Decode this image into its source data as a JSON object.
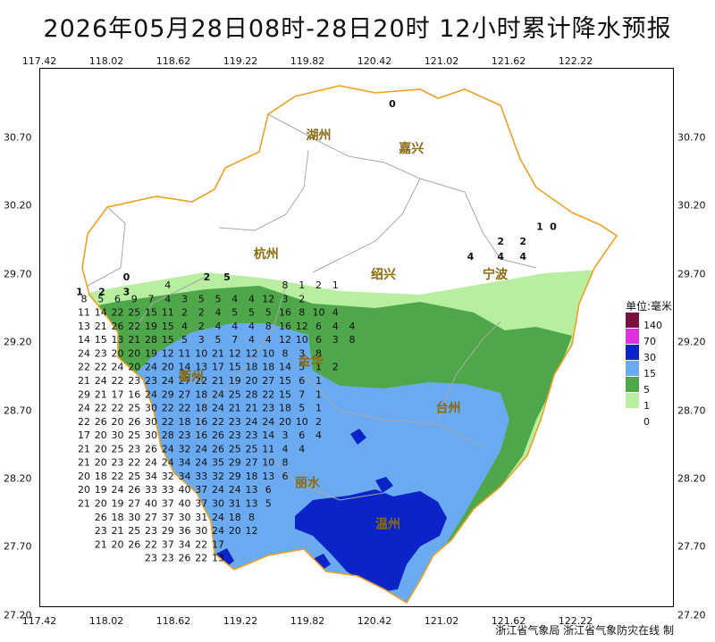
{
  "title": "2026年05月28日08时-28日20时  12小时累计降水预报",
  "axes": {
    "lon_top": [
      "117.42",
      "118.02",
      "118.62",
      "119.22",
      "119.82",
      "120.42",
      "121.02",
      "121.62",
      "122.22"
    ],
    "lon_bottom": [
      "117.42",
      "118.02",
      "118.62",
      "119.22",
      "119.82",
      "120.42",
      "121.02",
      "121.62",
      "122.22"
    ],
    "lat_left": [
      "30.70",
      "30.20",
      "29.70",
      "29.20",
      "28.70",
      "28.20",
      "27.70",
      "27.20"
    ],
    "lat_right": [
      "30.70",
      "30.20",
      "29.70",
      "29.20",
      "28.70",
      "28.20",
      "27.70",
      "27.20"
    ]
  },
  "cities": [
    {
      "name": "湖州",
      "lon": 119.92,
      "lat": 30.72
    },
    {
      "name": "嘉兴",
      "lon": 120.75,
      "lat": 30.62
    },
    {
      "name": "杭州",
      "lon": 119.45,
      "lat": 29.85
    },
    {
      "name": "绍兴",
      "lon": 120.5,
      "lat": 29.7
    },
    {
      "name": "宁波",
      "lon": 121.5,
      "lat": 29.7
    },
    {
      "name": "金华",
      "lon": 119.85,
      "lat": 29.06
    },
    {
      "name": "衢州",
      "lon": 118.78,
      "lat": 28.95
    },
    {
      "name": "台州",
      "lon": 121.08,
      "lat": 28.72
    },
    {
      "name": "丽水",
      "lon": 119.82,
      "lat": 28.17
    },
    {
      "name": "温州",
      "lon": 120.54,
      "lat": 27.87
    }
  ],
  "legend": {
    "unit": "单位:毫米",
    "items": [
      {
        "label": "140",
        "color": "#7a1040"
      },
      {
        "label": "70",
        "color": "#e030e0"
      },
      {
        "label": "30",
        "color": "#0b24c8"
      },
      {
        "label": "15",
        "color": "#6aaaf0"
      },
      {
        "label": "5",
        "color": "#4ea84a"
      },
      {
        "label": "1",
        "color": "#b8eea0"
      },
      {
        "label": "0",
        "color": "#ffffff"
      }
    ]
  },
  "credit": "浙江省气象局  浙江省气象防灾在线  制",
  "grid_values": {
    "lon0": 117.82,
    "dlon": 0.15,
    "lat0": 29.62,
    "dlat": 0.1,
    "rows": [
      [
        null,
        null,
        null,
        null,
        null,
        "4",
        null,
        null,
        null,
        null,
        null,
        null,
        "8",
        "1",
        "2",
        "1",
        null,
        null
      ],
      [
        "8",
        "5",
        "6",
        "9",
        "7",
        "4",
        "3",
        "5",
        "5",
        "4",
        "4",
        "12",
        "3",
        "2",
        null,
        null,
        null,
        null
      ],
      [
        "11",
        "14",
        "22",
        "25",
        "15",
        "11",
        "2",
        "2",
        "4",
        "5",
        "5",
        "5",
        "16",
        "8",
        "10",
        "4",
        null,
        null
      ],
      [
        "13",
        "21",
        "26",
        "22",
        "19",
        "15",
        "4",
        "2",
        "4",
        "4",
        "4",
        "8",
        "16",
        "12",
        "6",
        "4",
        "4",
        null
      ],
      [
        "14",
        "15",
        "13",
        "21",
        "28",
        "15",
        "5",
        "3",
        "5",
        "7",
        "4",
        "4",
        "12",
        "10",
        "6",
        "3",
        "8",
        null
      ],
      [
        "24",
        "23",
        "20",
        "20",
        "19",
        "12",
        "11",
        "10",
        "21",
        "12",
        "12",
        "10",
        "8",
        "3",
        "8",
        null,
        null,
        null
      ],
      [
        "22",
        "22",
        "24",
        "20",
        "24",
        "20",
        "14",
        "13",
        "17",
        "15",
        "18",
        "18",
        "14",
        "5",
        "1",
        "2",
        null,
        null
      ],
      [
        "21",
        "24",
        "22",
        "23",
        "23",
        "24",
        "27",
        "22",
        "21",
        "19",
        "20",
        "27",
        "15",
        "6",
        "1",
        null,
        null,
        null
      ],
      [
        "29",
        "21",
        "17",
        "16",
        "24",
        "29",
        "27",
        "18",
        "24",
        "25",
        "28",
        "22",
        "15",
        "7",
        "1",
        null,
        null,
        null
      ],
      [
        "24",
        "22",
        "22",
        "25",
        "30",
        "22",
        "22",
        "18",
        "24",
        "21",
        "21",
        "23",
        "18",
        "5",
        "1",
        null,
        null,
        null
      ],
      [
        "22",
        "26",
        "20",
        "26",
        "30",
        "22",
        "18",
        "16",
        "22",
        "23",
        "24",
        "24",
        "20",
        "10",
        "2",
        null,
        null,
        null
      ],
      [
        "17",
        "20",
        "30",
        "25",
        "30",
        "28",
        "23",
        "16",
        "26",
        "23",
        "23",
        "14",
        "3",
        "6",
        "4",
        null,
        null,
        null
      ],
      [
        "21",
        "20",
        "25",
        "23",
        "26",
        "24",
        "32",
        "24",
        "26",
        "25",
        "25",
        "11",
        "4",
        "4",
        null,
        null,
        null,
        null
      ],
      [
        "21",
        "20",
        "23",
        "22",
        "24",
        "24",
        "34",
        "24",
        "35",
        "29",
        "27",
        "10",
        "8",
        null,
        null,
        null,
        null,
        null
      ],
      [
        "20",
        "18",
        "22",
        "25",
        "34",
        "32",
        "34",
        "33",
        "32",
        "29",
        "18",
        "13",
        "6",
        null,
        null,
        null,
        null,
        null
      ],
      [
        "20",
        "19",
        "24",
        "26",
        "33",
        "33",
        "40",
        "37",
        "24",
        "24",
        "13",
        "6",
        null,
        null,
        null,
        null,
        null,
        null
      ],
      [
        "21",
        "20",
        "19",
        "27",
        "40",
        "37",
        "40",
        "37",
        "30",
        "31",
        "13",
        "5",
        null,
        null,
        null,
        null,
        null,
        null
      ],
      [
        null,
        "26",
        "18",
        "30",
        "27",
        "37",
        "30",
        "31",
        "24",
        "18",
        "8",
        null,
        null,
        null,
        null,
        null,
        null,
        null
      ],
      [
        null,
        "23",
        "21",
        "25",
        "23",
        "29",
        "36",
        "30",
        "24",
        "20",
        "12",
        null,
        null,
        null,
        null,
        null,
        null,
        null
      ],
      [
        null,
        "21",
        "20",
        "26",
        "22",
        "37",
        "34",
        "22",
        "17",
        null,
        null,
        null,
        null,
        null,
        null,
        null,
        null,
        null
      ],
      [
        null,
        null,
        null,
        null,
        "23",
        "23",
        "26",
        "22",
        "13",
        null,
        null,
        null,
        null,
        null,
        null,
        null,
        null,
        null
      ]
    ],
    "extra": [
      {
        "v": "0",
        "lon": 120.58,
        "lat": 30.95
      },
      {
        "v": "0",
        "lon": 118.2,
        "lat": 29.68
      },
      {
        "v": "3",
        "lon": 118.2,
        "lat": 29.57
      },
      {
        "v": "2",
        "lon": 118.92,
        "lat": 29.68
      },
      {
        "v": "5",
        "lon": 119.1,
        "lat": 29.68
      },
      {
        "v": "1",
        "lon": 117.78,
        "lat": 29.57
      },
      {
        "v": "2",
        "lon": 117.98,
        "lat": 29.57
      },
      {
        "v": "2",
        "lon": 121.55,
        "lat": 29.94
      },
      {
        "v": "2",
        "lon": 121.75,
        "lat": 29.94
      },
      {
        "v": "1",
        "lon": 121.9,
        "lat": 30.05
      },
      {
        "v": "0",
        "lon": 122.02,
        "lat": 30.05
      },
      {
        "v": "4",
        "lon": 121.28,
        "lat": 29.83
      },
      {
        "v": "4",
        "lon": 121.55,
        "lat": 29.83
      },
      {
        "v": "4",
        "lon": 121.75,
        "lat": 29.83
      }
    ]
  }
}
